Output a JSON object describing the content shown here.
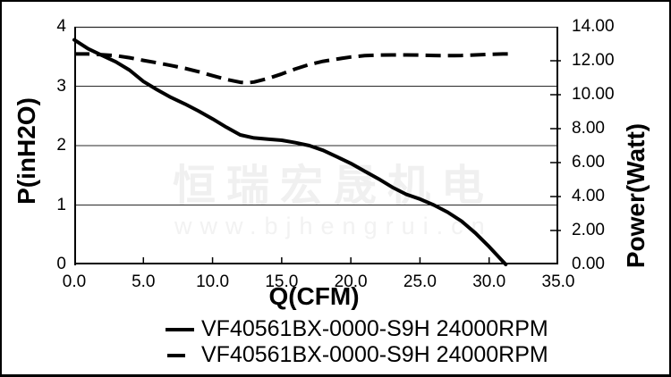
{
  "watermark": {
    "line1": "恒瑞宏晟机电",
    "line2": "www.bjhengrui.cn"
  },
  "axes": {
    "x": {
      "title": "Q(CFM)",
      "tick_labels": [
        "0.0",
        "5.0",
        "10.0",
        "15.0",
        "20.0",
        "25.0",
        "30.0",
        "35.0"
      ],
      "tick_values": [
        0,
        5,
        10,
        15,
        20,
        25,
        30,
        35
      ]
    },
    "y_left": {
      "title": "P(inH2O)",
      "tick_labels": [
        "4",
        "3",
        "2",
        "1",
        "0"
      ],
      "tick_values": [
        4,
        3,
        2,
        1,
        0
      ]
    },
    "y_right": {
      "title": "Power(Watt)",
      "tick_labels": [
        "14.00",
        "12.00",
        "10.00",
        "8.00",
        "6.00",
        "4.00",
        "2.00",
        "0.00"
      ],
      "tick_values": [
        14,
        12,
        10,
        8,
        6,
        4,
        2,
        0
      ]
    }
  },
  "legend": [
    {
      "label": "VF40561BX-0000-S9H 24000RPM",
      "style": "solid"
    },
    {
      "label": "VF40561BX-0000-S9H 24000RPM",
      "style": "dashed"
    }
  ],
  "colors": {
    "curve": "#000000",
    "grid": "#2a2a2a",
    "axis": "#000000",
    "text": "#000000",
    "background": "#ffffff",
    "watermark": "#f0f0f0"
  },
  "chart_data": {
    "type": "line",
    "title": "",
    "xlabel": "Q(CFM)",
    "ylabel_left": "P(inH2O)",
    "ylabel_right": "Power(Watt)",
    "xlim": [
      0,
      35
    ],
    "ylim_left": [
      0,
      4
    ],
    "ylim_right": [
      0,
      14
    ],
    "grid": "horizontal",
    "grid_y_left_values": [
      1,
      2,
      3
    ],
    "legend_position": "bottom",
    "series": [
      {
        "name": "VF40561BX-0000-S9H 24000RPM",
        "style": "solid",
        "axis": "left",
        "unit": "inH2O",
        "points": [
          [
            0,
            3.78
          ],
          [
            1,
            3.63
          ],
          [
            2,
            3.52
          ],
          [
            3,
            3.41
          ],
          [
            4,
            3.27
          ],
          [
            5,
            3.08
          ],
          [
            6,
            2.94
          ],
          [
            7,
            2.81
          ],
          [
            8,
            2.7
          ],
          [
            9,
            2.58
          ],
          [
            10,
            2.45
          ],
          [
            11,
            2.31
          ],
          [
            12,
            2.18
          ],
          [
            13,
            2.13
          ],
          [
            14,
            2.11
          ],
          [
            15,
            2.09
          ],
          [
            16,
            2.05
          ],
          [
            17,
            2.0
          ],
          [
            18,
            1.92
          ],
          [
            19,
            1.81
          ],
          [
            20,
            1.7
          ],
          [
            21,
            1.57
          ],
          [
            22,
            1.44
          ],
          [
            23,
            1.3
          ],
          [
            24,
            1.18
          ],
          [
            25,
            1.1
          ],
          [
            26,
            1.0
          ],
          [
            27,
            0.88
          ],
          [
            28,
            0.73
          ],
          [
            29,
            0.53
          ],
          [
            30,
            0.3
          ],
          [
            31,
            0.05
          ],
          [
            31.2,
            0
          ]
        ]
      },
      {
        "name": "VF40561BX-0000-S9H 24000RPM",
        "style": "dashed",
        "axis": "right",
        "unit": "Watt",
        "points": [
          [
            0,
            12.4
          ],
          [
            1,
            12.4
          ],
          [
            2,
            12.36
          ],
          [
            3,
            12.3
          ],
          [
            4,
            12.18
          ],
          [
            5,
            12.02
          ],
          [
            6,
            11.88
          ],
          [
            7,
            11.72
          ],
          [
            8,
            11.55
          ],
          [
            9,
            11.35
          ],
          [
            10,
            11.12
          ],
          [
            11,
            10.9
          ],
          [
            12,
            10.73
          ],
          [
            12.5,
            10.7
          ],
          [
            13,
            10.75
          ],
          [
            14,
            10.95
          ],
          [
            15,
            11.22
          ],
          [
            16,
            11.52
          ],
          [
            17,
            11.78
          ],
          [
            18,
            11.97
          ],
          [
            19,
            12.1
          ],
          [
            20,
            12.22
          ],
          [
            21,
            12.3
          ],
          [
            22,
            12.33
          ],
          [
            23,
            12.34
          ],
          [
            24,
            12.34
          ],
          [
            25,
            12.33
          ],
          [
            26,
            12.31
          ],
          [
            27,
            12.3
          ],
          [
            28,
            12.31
          ],
          [
            29,
            12.34
          ],
          [
            30,
            12.38
          ],
          [
            31,
            12.4
          ],
          [
            31.4,
            12.4
          ]
        ]
      }
    ]
  }
}
